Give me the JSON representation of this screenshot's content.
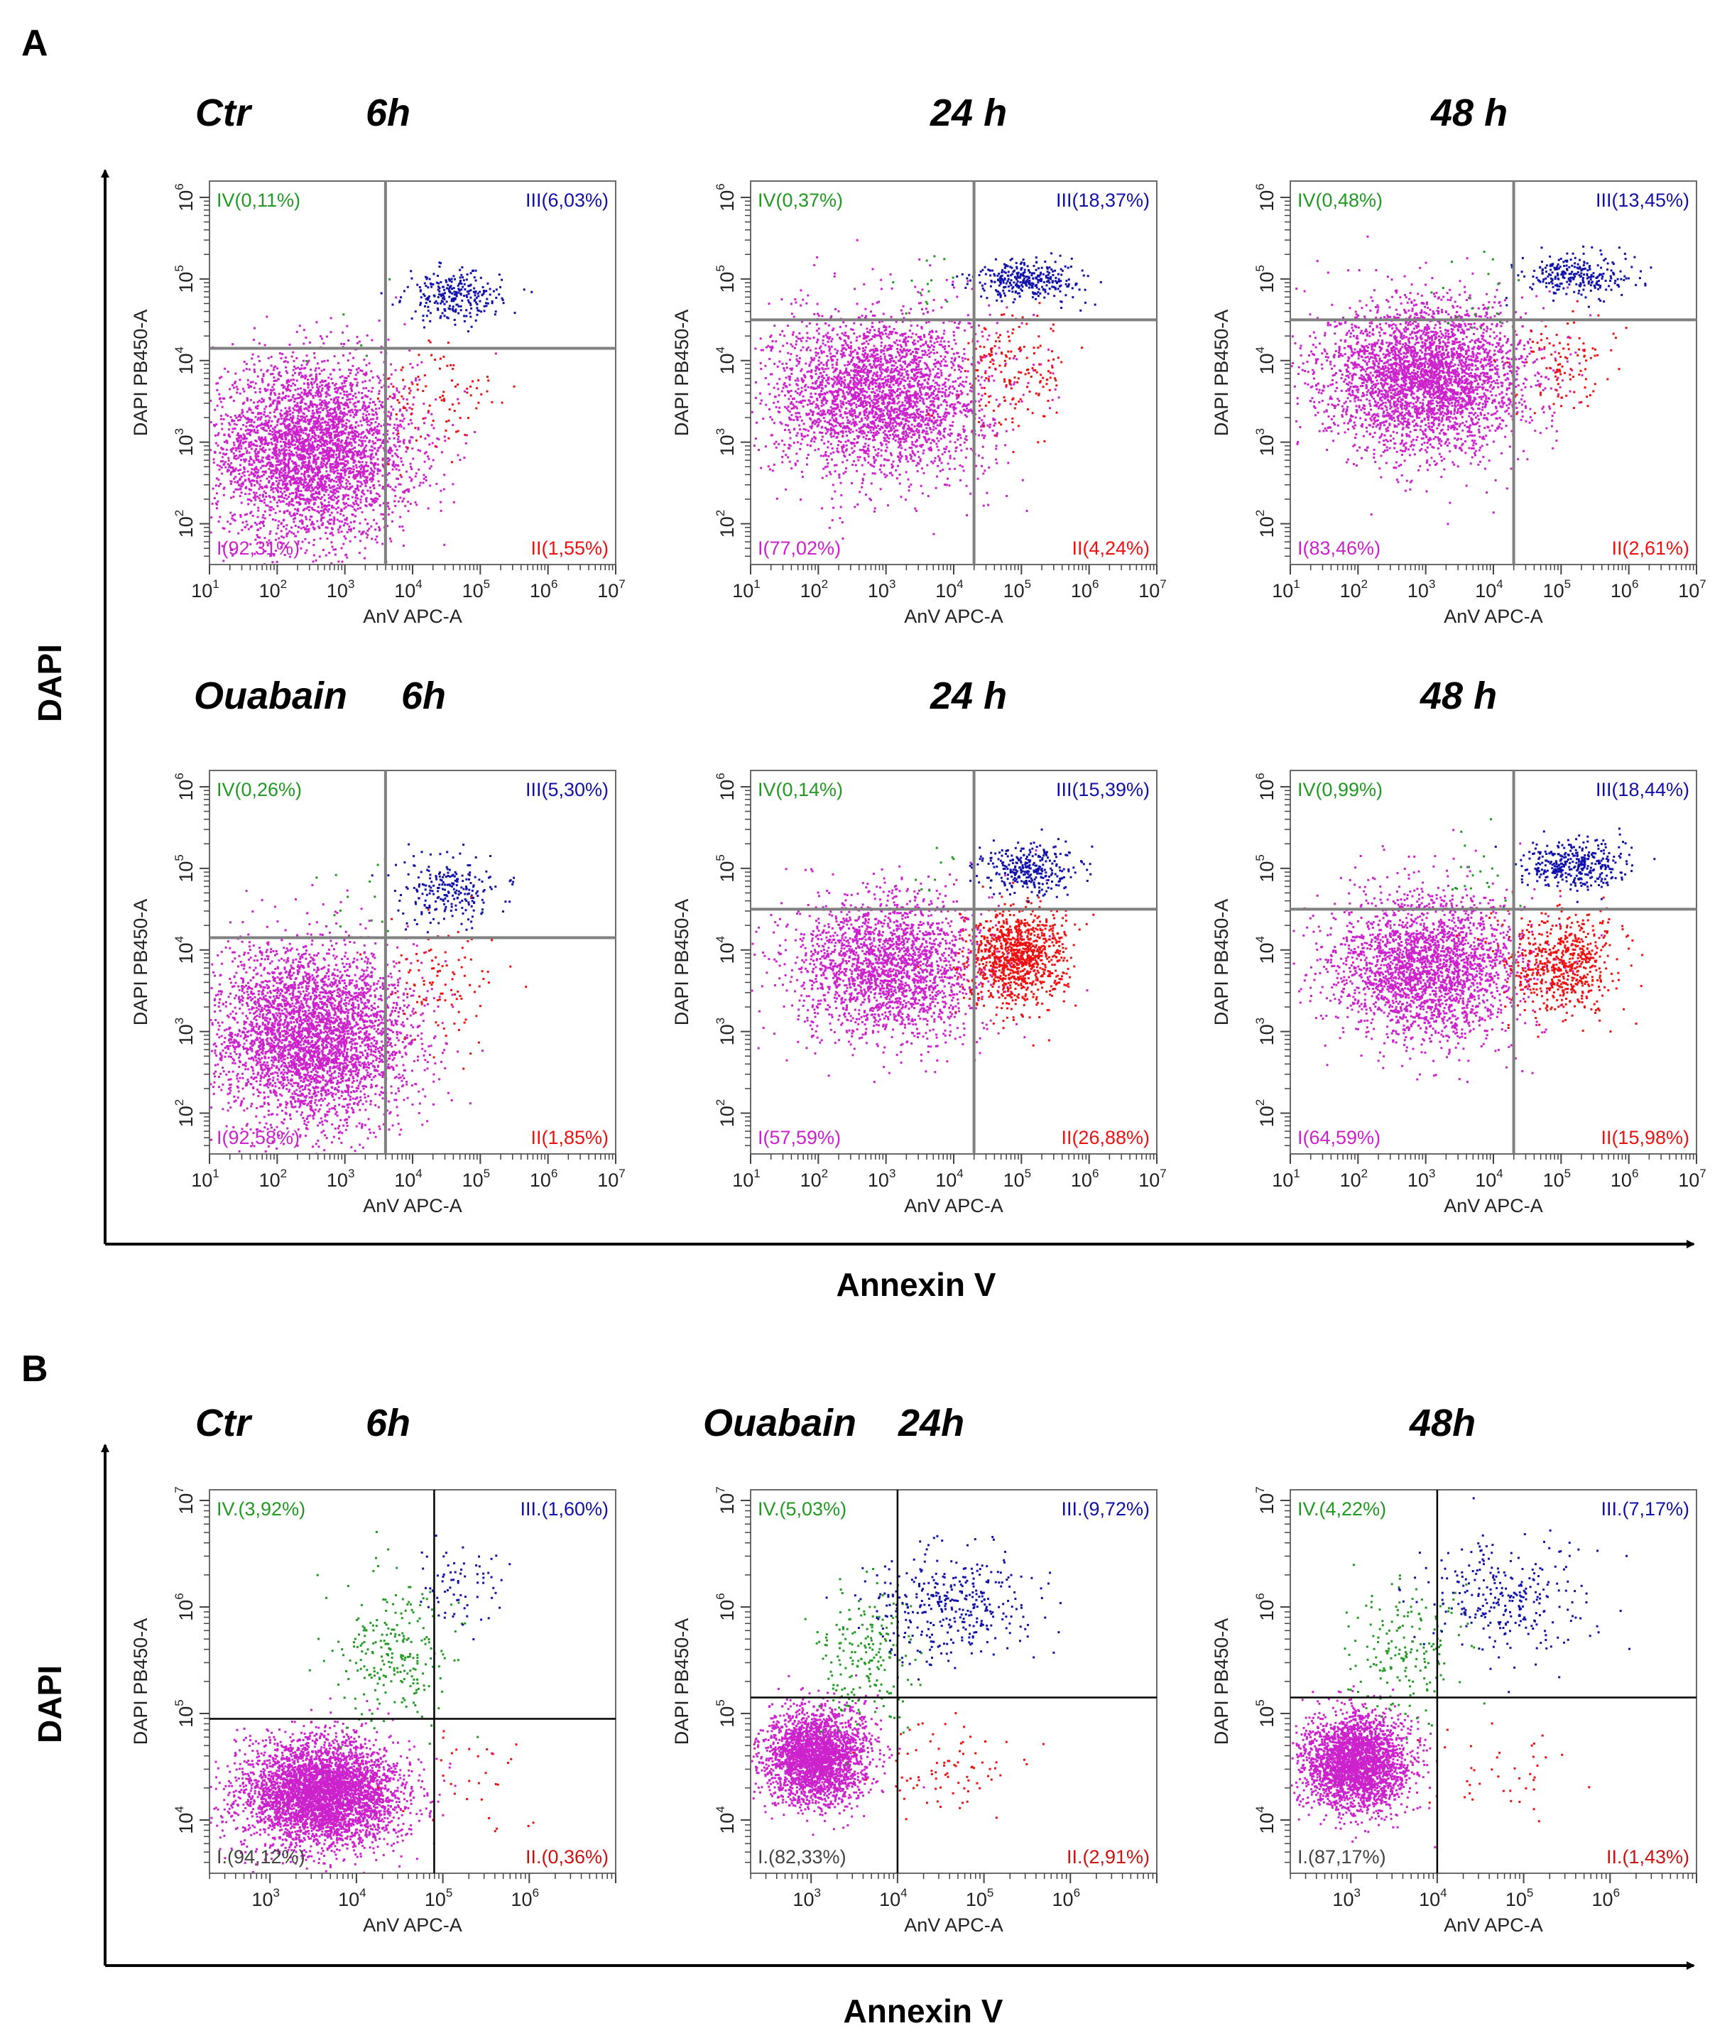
{
  "colors": {
    "q1": "#cc22cc",
    "q2": "#ee1111",
    "q3": "#1111aa",
    "q4": "#229922",
    "q1_label_A": "#cc22cc",
    "q1_label_B": "#444444",
    "gate_A": "#808080",
    "gate_B": "#000000",
    "q2_label_B": "#cc1111"
  },
  "figure": {
    "panel_a_letter": "A",
    "panel_b_letter": "B",
    "panel_a": {
      "y_big_label": "DAPI",
      "x_big_label": "Annexin V",
      "row1": {
        "ctr": "Ctr",
        "t6": "6h",
        "t24": "24 h",
        "t48": "48 h"
      },
      "row2": {
        "ouabain": "Ouabain",
        "t6": "6h",
        "t24": "24 h",
        "t48": "48 h"
      }
    },
    "panel_b": {
      "y_big_label": "DAPI",
      "x_big_label": "Annexin V",
      "ctr": "Ctr",
      "t6": "6h",
      "ouabain": "Ouabain",
      "t24": "24h",
      "t48": "48h"
    }
  },
  "chart_data": [
    {
      "type": "scatter",
      "panel": "A",
      "condition": "Ctr",
      "time": "6h",
      "xlabel": "AnV APC-A",
      "ylabel": "DAPI PB450-A",
      "xscale": "log10",
      "yscale": "log10",
      "xlim": [
        1,
        7
      ],
      "ylim": [
        1.5,
        6.2
      ],
      "xticks": [
        1,
        2,
        3,
        4,
        5,
        6,
        7
      ],
      "yticks": [
        2,
        3,
        4,
        5,
        6
      ],
      "gate": {
        "x": 3.6,
        "y": 4.15
      },
      "quadrants": {
        "I": "I(92,31%)",
        "II": "II(1,55%)",
        "III": "III(6,03%)",
        "IV": "IV(0,11%)"
      },
      "populations": [
        {
          "q": "q1",
          "cx": 2.5,
          "cy": 2.9,
          "sx": 0.75,
          "sy": 0.55,
          "n": 3800
        },
        {
          "q": "q3",
          "cx": 4.6,
          "cy": 4.8,
          "sx": 0.35,
          "sy": 0.15,
          "n": 260
        },
        {
          "q": "q2",
          "cx": 4.4,
          "cy": 3.5,
          "sx": 0.45,
          "sy": 0.4,
          "n": 90
        },
        {
          "q": "q4",
          "cx": 3.2,
          "cy": 4.6,
          "sx": 0.3,
          "sy": 0.3,
          "n": 6
        }
      ]
    },
    {
      "type": "scatter",
      "panel": "A",
      "condition": "Ctr",
      "time": "24 h",
      "xlabel": "AnV APC-A",
      "ylabel": "DAPI PB450-A",
      "xscale": "log10",
      "yscale": "log10",
      "xlim": [
        1,
        7
      ],
      "ylim": [
        1.5,
        6.2
      ],
      "xticks": [
        1,
        2,
        3,
        4,
        5,
        6,
        7
      ],
      "yticks": [
        2,
        3,
        4,
        5,
        6
      ],
      "gate": {
        "x": 4.3,
        "y": 4.5
      },
      "quadrants": {
        "I": "I(77,02%)",
        "II": "II(4,24%)",
        "III": "III(18,37%)",
        "IV": "IV(0,37%)"
      },
      "populations": [
        {
          "q": "q1",
          "cx": 2.9,
          "cy": 3.6,
          "sx": 0.8,
          "sy": 0.5,
          "n": 3000
        },
        {
          "q": "q3",
          "cx": 5.1,
          "cy": 5.0,
          "sx": 0.4,
          "sy": 0.12,
          "n": 320
        },
        {
          "q": "q2",
          "cx": 4.9,
          "cy": 3.9,
          "sx": 0.4,
          "sy": 0.35,
          "n": 160
        },
        {
          "q": "q4",
          "cx": 3.7,
          "cy": 4.9,
          "sx": 0.35,
          "sy": 0.25,
          "n": 14
        }
      ]
    },
    {
      "type": "scatter",
      "panel": "A",
      "condition": "Ctr",
      "time": "48 h",
      "xlabel": "AnV APC-A",
      "ylabel": "DAPI PB450-A",
      "xscale": "log10",
      "yscale": "log10",
      "xlim": [
        1,
        7
      ],
      "ylim": [
        1.5,
        6.2
      ],
      "xticks": [
        1,
        2,
        3,
        4,
        5,
        6,
        7
      ],
      "yticks": [
        2,
        3,
        4,
        5,
        6
      ],
      "gate": {
        "x": 4.3,
        "y": 4.5
      },
      "quadrants": {
        "I": "I(83,46%)",
        "II": "II(2,61%)",
        "III": "III(13,45%)",
        "IV": "IV(0,48%)"
      },
      "populations": [
        {
          "q": "q1",
          "cx": 3.0,
          "cy": 3.8,
          "sx": 0.75,
          "sy": 0.45,
          "n": 3400
        },
        {
          "q": "q3",
          "cx": 5.2,
          "cy": 5.05,
          "sx": 0.4,
          "sy": 0.13,
          "n": 260
        },
        {
          "q": "q2",
          "cx": 5.0,
          "cy": 4.0,
          "sx": 0.35,
          "sy": 0.3,
          "n": 100
        },
        {
          "q": "q4",
          "cx": 3.8,
          "cy": 4.9,
          "sx": 0.35,
          "sy": 0.25,
          "n": 18
        }
      ]
    },
    {
      "type": "scatter",
      "panel": "A",
      "condition": "Ouabain",
      "time": "6h",
      "xlabel": "AnV APC-A",
      "ylabel": "DAPI PB450-A",
      "xscale": "log10",
      "yscale": "log10",
      "xlim": [
        1,
        7
      ],
      "ylim": [
        1.5,
        6.2
      ],
      "xticks": [
        1,
        2,
        3,
        4,
        5,
        6,
        7
      ],
      "yticks": [
        2,
        3,
        4,
        5,
        6
      ],
      "gate": {
        "x": 3.6,
        "y": 4.15
      },
      "quadrants": {
        "I": "I(92,58%)",
        "II": "II(1,85%)",
        "III": "III(5,30%)",
        "IV": "IV(0,26%)"
      },
      "populations": [
        {
          "q": "q1",
          "cx": 2.5,
          "cy": 2.95,
          "sx": 0.75,
          "sy": 0.55,
          "n": 3800
        },
        {
          "q": "q3",
          "cx": 4.6,
          "cy": 4.75,
          "sx": 0.4,
          "sy": 0.2,
          "n": 230
        },
        {
          "q": "q2",
          "cx": 4.4,
          "cy": 3.6,
          "sx": 0.45,
          "sy": 0.35,
          "n": 100
        },
        {
          "q": "q4",
          "cx": 3.2,
          "cy": 4.6,
          "sx": 0.35,
          "sy": 0.25,
          "n": 12
        }
      ]
    },
    {
      "type": "scatter",
      "panel": "A",
      "condition": "Ouabain",
      "time": "24 h",
      "xlabel": "AnV APC-A",
      "ylabel": "DAPI PB450-A",
      "xscale": "log10",
      "yscale": "log10",
      "xlim": [
        1,
        7
      ],
      "ylim": [
        1.5,
        6.2
      ],
      "xticks": [
        1,
        2,
        3,
        4,
        5,
        6,
        7
      ],
      "yticks": [
        2,
        3,
        4,
        5,
        6
      ],
      "gate": {
        "x": 4.3,
        "y": 4.5
      },
      "quadrants": {
        "I": "I(57,59%)",
        "II": "II(26,88%)",
        "III": "III(15,39%)",
        "IV": "IV(0,14%)"
      },
      "populations": [
        {
          "q": "q1",
          "cx": 3.0,
          "cy": 3.8,
          "sx": 0.7,
          "sy": 0.45,
          "n": 2200
        },
        {
          "q": "q2",
          "cx": 4.9,
          "cy": 3.9,
          "sx": 0.35,
          "sy": 0.3,
          "n": 1000
        },
        {
          "q": "q3",
          "cx": 5.1,
          "cy": 5.0,
          "sx": 0.35,
          "sy": 0.15,
          "n": 300
        },
        {
          "q": "q4",
          "cx": 3.8,
          "cy": 4.9,
          "sx": 0.3,
          "sy": 0.25,
          "n": 8
        }
      ]
    },
    {
      "type": "scatter",
      "panel": "A",
      "condition": "Ouabain",
      "time": "48 h",
      "xlabel": "AnV APC-A",
      "ylabel": "DAPI PB450-A",
      "xscale": "log10",
      "yscale": "log10",
      "xlim": [
        1,
        7
      ],
      "ylim": [
        1.5,
        6.2
      ],
      "xticks": [
        1,
        2,
        3,
        4,
        5,
        6,
        7
      ],
      "yticks": [
        2,
        3,
        4,
        5,
        6
      ],
      "gate": {
        "x": 4.3,
        "y": 4.5
      },
      "quadrants": {
        "I": "I(64,59%)",
        "II": "II(15,98%)",
        "III": "III(18,44%)",
        "IV": "IV(0,99%)"
      },
      "populations": [
        {
          "q": "q1",
          "cx": 3.0,
          "cy": 3.8,
          "sx": 0.7,
          "sy": 0.45,
          "n": 2500
        },
        {
          "q": "q2",
          "cx": 5.0,
          "cy": 3.85,
          "sx": 0.4,
          "sy": 0.3,
          "n": 620
        },
        {
          "q": "q3",
          "cx": 5.2,
          "cy": 5.05,
          "sx": 0.4,
          "sy": 0.15,
          "n": 360
        },
        {
          "q": "q4",
          "cx": 3.8,
          "cy": 4.95,
          "sx": 0.3,
          "sy": 0.3,
          "n": 22
        }
      ]
    },
    {
      "type": "scatter",
      "panel": "B",
      "condition": "Ctr",
      "time": "6h",
      "xlabel": "AnV APC-A",
      "ylabel": "DAPI PB450-A",
      "xscale": "log10",
      "yscale": "log10",
      "xlim": [
        2.3,
        7
      ],
      "ylim": [
        3.5,
        7.1
      ],
      "xticks": [
        3,
        4,
        5,
        6
      ],
      "yticks": [
        4,
        5,
        6,
        7
      ],
      "gate": {
        "x": 4.9,
        "y": 4.95
      },
      "quadrants": {
        "I": "I.(94,12%)",
        "II": "II.(0,36%)",
        "III": "III.(1,60%)",
        "IV": "IV.(3,92%)"
      },
      "populations": [
        {
          "q": "q1",
          "cx": 3.6,
          "cy": 4.25,
          "sx": 0.45,
          "sy": 0.25,
          "n": 4200
        },
        {
          "q": "q4",
          "cx": 4.4,
          "cy": 5.6,
          "sx": 0.35,
          "sy": 0.35,
          "n": 240
        },
        {
          "q": "q3",
          "cx": 5.2,
          "cy": 6.2,
          "sx": 0.25,
          "sy": 0.2,
          "n": 70
        },
        {
          "q": "q2",
          "cx": 5.3,
          "cy": 4.5,
          "sx": 0.35,
          "sy": 0.3,
          "n": 30
        }
      ]
    },
    {
      "type": "scatter",
      "panel": "B",
      "condition": "Ouabain",
      "time": "24h",
      "xlabel": "AnV APC-A",
      "ylabel": "DAPI PB450-A",
      "xscale": "log10",
      "yscale": "log10",
      "xlim": [
        2.3,
        7
      ],
      "ylim": [
        3.5,
        7.1
      ],
      "xticks": [
        3,
        4,
        5,
        6
      ],
      "yticks": [
        4,
        5,
        6,
        7
      ],
      "gate": {
        "x": 4.0,
        "y": 5.15
      },
      "quadrants": {
        "I": "I.(82,33%)",
        "II": "II.(2,91%)",
        "III": "III.(9,72%)",
        "IV": "IV.(5,03%)"
      },
      "populations": [
        {
          "q": "q1",
          "cx": 3.05,
          "cy": 4.6,
          "sx": 0.3,
          "sy": 0.22,
          "n": 2600
        },
        {
          "q": "q4",
          "cx": 3.65,
          "cy": 5.55,
          "sx": 0.3,
          "sy": 0.3,
          "n": 200
        },
        {
          "q": "q3",
          "cx": 4.6,
          "cy": 6.05,
          "sx": 0.45,
          "sy": 0.25,
          "n": 360
        },
        {
          "q": "q2",
          "cx": 4.6,
          "cy": 4.5,
          "sx": 0.4,
          "sy": 0.2,
          "n": 80
        }
      ]
    },
    {
      "type": "scatter",
      "panel": "B",
      "condition": "Ouabain",
      "time": "48h",
      "xlabel": "AnV APC-A",
      "ylabel": "DAPI PB450-A",
      "xscale": "log10",
      "yscale": "log10",
      "xlim": [
        2.3,
        7
      ],
      "ylim": [
        3.5,
        7.1
      ],
      "xticks": [
        3,
        4,
        5,
        6
      ],
      "yticks": [
        4,
        5,
        6,
        7
      ],
      "gate": {
        "x": 4.0,
        "y": 5.15
      },
      "quadrants": {
        "I": "I.(87,17%)",
        "II": "II.(1,43%)",
        "III": "III.(7,17%)",
        "IV": "IV.(4,22%)"
      },
      "populations": [
        {
          "q": "q1",
          "cx": 3.05,
          "cy": 4.55,
          "sx": 0.3,
          "sy": 0.22,
          "n": 2700
        },
        {
          "q": "q4",
          "cx": 3.65,
          "cy": 5.6,
          "sx": 0.3,
          "sy": 0.3,
          "n": 180
        },
        {
          "q": "q3",
          "cx": 4.8,
          "cy": 6.05,
          "sx": 0.5,
          "sy": 0.25,
          "n": 280
        },
        {
          "q": "q2",
          "cx": 4.7,
          "cy": 4.5,
          "sx": 0.45,
          "sy": 0.2,
          "n": 40
        }
      ]
    }
  ]
}
